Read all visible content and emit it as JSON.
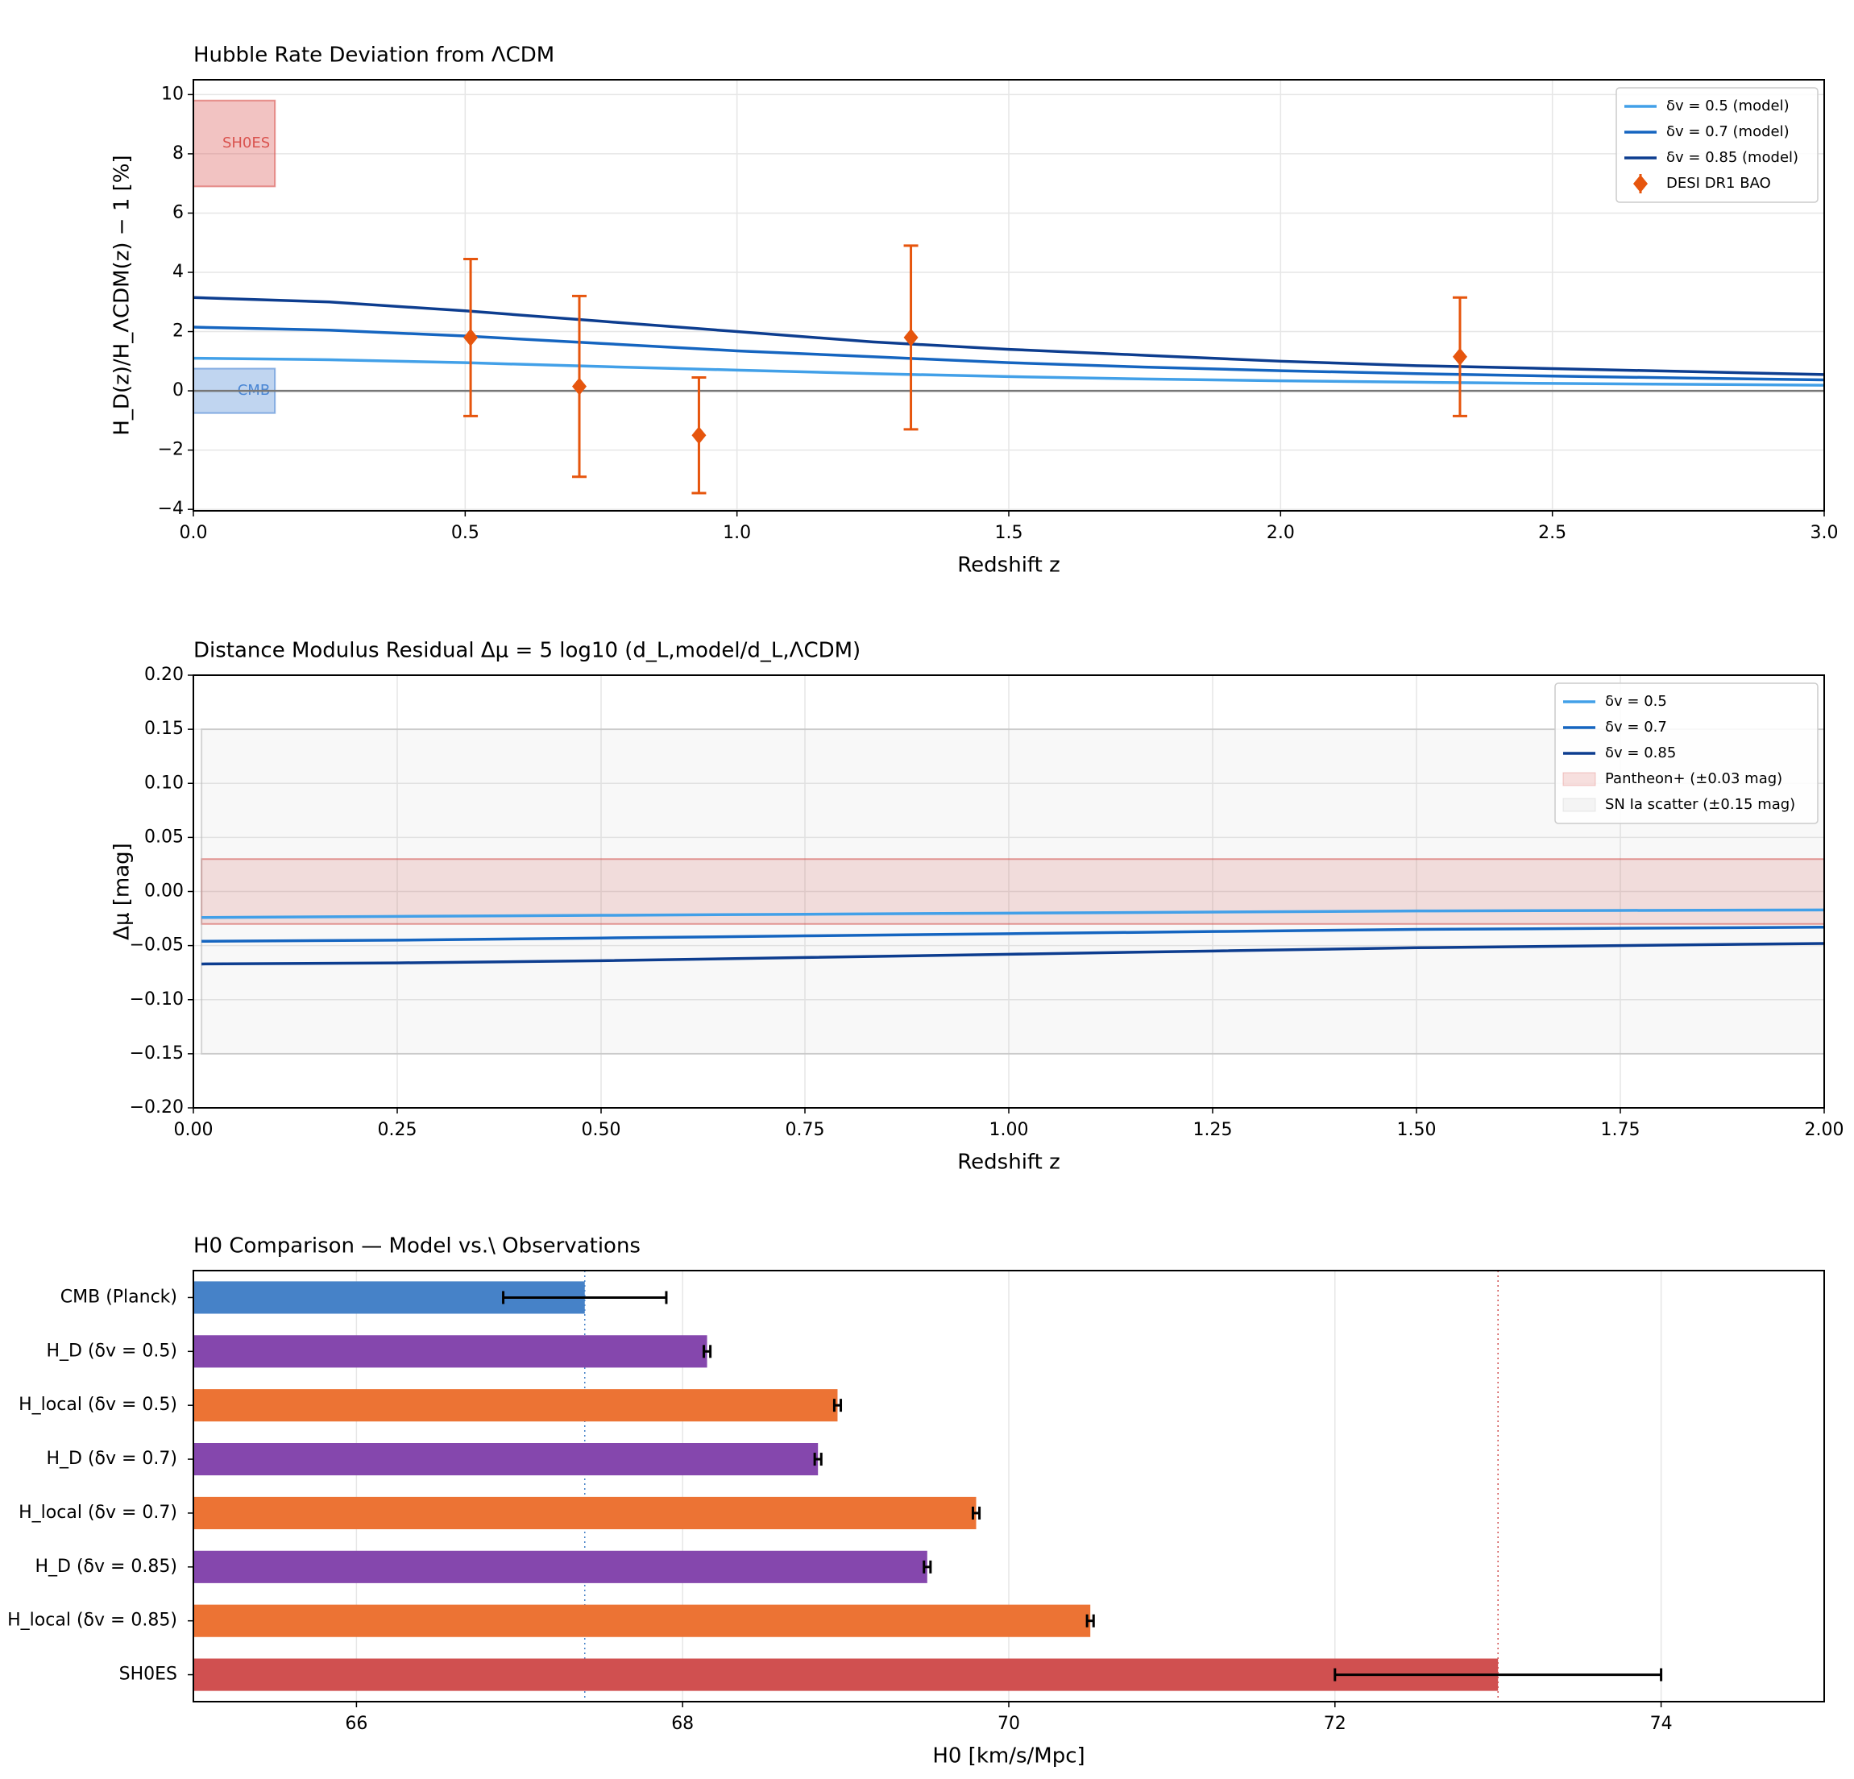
{
  "chart_data": [
    {
      "type": "line",
      "title": "Hubble Rate Deviation from ΛCDM",
      "xlabel": "Redshift z",
      "ylabel": "H_D(z)/H_ΛCDM(z) − 1 [%]",
      "x": [
        0,
        0.25,
        0.5,
        0.75,
        1.0,
        1.25,
        1.5,
        1.75,
        2.0,
        2.25,
        2.5,
        2.75,
        3.0
      ],
      "series": [
        {
          "name": "δv = 0.5 (model)",
          "color": "#42a0e8",
          "values": [
            1.1,
            1.05,
            0.95,
            0.82,
            0.7,
            0.58,
            0.48,
            0.4,
            0.34,
            0.29,
            0.25,
            0.22,
            0.19
          ]
        },
        {
          "name": "δv = 0.7 (model)",
          "color": "#1565c0",
          "values": [
            2.15,
            2.05,
            1.85,
            1.6,
            1.35,
            1.15,
            0.95,
            0.8,
            0.68,
            0.58,
            0.5,
            0.43,
            0.37
          ]
        },
        {
          "name": "δv = 0.85 (model)",
          "color": "#0d3d8f",
          "values": [
            3.15,
            3.0,
            2.7,
            2.35,
            2.0,
            1.65,
            1.4,
            1.2,
            1.0,
            0.85,
            0.75,
            0.65,
            0.55
          ]
        }
      ],
      "points": {
        "name": "DESI DR1 BAO",
        "color": "#e6550d",
        "x": [
          0.51,
          0.71,
          0.93,
          1.32,
          2.33
        ],
        "values": [
          1.8,
          0.15,
          -1.5,
          1.8,
          1.15
        ],
        "errors": [
          2.65,
          3.05,
          1.95,
          3.1,
          2.0
        ]
      },
      "bands": [
        {
          "label": "SH0ES",
          "color": "#d9534f",
          "xlim": [
            0,
            0.15
          ],
          "ylim": [
            6.9,
            9.8
          ]
        },
        {
          "label": "CMB",
          "color": "#4a86d4",
          "xlim": [
            0,
            0.15
          ],
          "ylim": [
            -0.75,
            0.75
          ]
        }
      ],
      "reference_line": 0,
      "xlim": [
        0,
        3
      ],
      "ylim": [
        -4.05,
        10.5
      ],
      "xticks": [
        {
          "value": 0,
          "label": "0.0"
        },
        0.5,
        {
          "value": 1,
          "label": "1.0"
        },
        1.5,
        {
          "value": 2,
          "label": "2.0"
        },
        2.5,
        {
          "value": 3,
          "label": "3.0"
        }
      ],
      "yticks": [
        {
          "value": -4,
          "label": "−4"
        },
        {
          "value": -2,
          "label": "−2"
        },
        0,
        2,
        4,
        6,
        8,
        10
      ],
      "grid": true,
      "legend": "upper right"
    },
    {
      "type": "line",
      "title": "Distance Modulus Residual Δμ = 5 log10 (d_L,model/d_L,ΛCDM)",
      "xlabel": "Redshift z",
      "ylabel": "Δμ [mag]",
      "x": [
        0.01,
        0.25,
        0.5,
        0.75,
        1.0,
        1.25,
        1.5,
        1.75,
        2.0
      ],
      "series": [
        {
          "name": "δv = 0.5",
          "color": "#42a0e8",
          "values": [
            -0.024,
            -0.023,
            -0.022,
            -0.021,
            -0.02,
            -0.019,
            -0.018,
            -0.0175,
            -0.017
          ]
        },
        {
          "name": "δv = 0.7",
          "color": "#1565c0",
          "values": [
            -0.046,
            -0.045,
            -0.043,
            -0.041,
            -0.039,
            -0.037,
            -0.035,
            -0.034,
            -0.033
          ]
        },
        {
          "name": "δv = 0.85",
          "color": "#0d3d8f",
          "values": [
            -0.067,
            -0.066,
            -0.064,
            -0.061,
            -0.058,
            -0.055,
            -0.052,
            -0.05,
            -0.048
          ]
        }
      ],
      "bands": [
        {
          "name": "Pantheon+ (±0.03 mag)",
          "color": "#d9534f",
          "opacity": 0.18,
          "xlim": [
            0.01,
            2
          ],
          "ylim": [
            -0.03,
            0.03
          ]
        },
        {
          "name": "SN Ia scatter (±0.15 mag)",
          "color": "#bbbbbb",
          "opacity": 0.1,
          "xlim": [
            0.01,
            2
          ],
          "ylim": [
            -0.15,
            0.15
          ]
        }
      ],
      "xlim": [
        0,
        2
      ],
      "ylim": [
        -0.2,
        0.2
      ],
      "xticks": [
        {
          "value": 0,
          "label": "0.00"
        },
        {
          "value": 0.25,
          "label": "0.25"
        },
        {
          "value": 0.5,
          "label": "0.50"
        },
        {
          "value": 0.75,
          "label": "0.75"
        },
        {
          "value": 1,
          "label": "1.00"
        },
        {
          "value": 1.25,
          "label": "1.25"
        },
        {
          "value": 1.5,
          "label": "1.50"
        },
        {
          "value": 1.75,
          "label": "1.75"
        },
        {
          "value": 2,
          "label": "2.00"
        }
      ],
      "yticks": [
        {
          "value": -0.2,
          "label": "−0.20"
        },
        {
          "value": -0.15,
          "label": "−0.15"
        },
        {
          "value": -0.1,
          "label": "−0.10"
        },
        {
          "value": -0.05,
          "label": "−0.05"
        },
        {
          "value": 0,
          "label": "0.00"
        },
        {
          "value": 0.05,
          "label": "0.05"
        },
        {
          "value": 0.1,
          "label": "0.10"
        },
        {
          "value": 0.15,
          "label": "0.15"
        },
        {
          "value": 0.2,
          "label": "0.20"
        }
      ],
      "grid": true,
      "legend": "upper right"
    },
    {
      "type": "barh",
      "title": "H0 Comparison — Model vs.\\ Observations",
      "xlabel": "H0 [km/s/Mpc]",
      "categories": [
        "CMB (Planck)",
        "H_D (δv = 0.5)",
        "H_local (δv = 0.5)",
        "H_D (δv = 0.7)",
        "H_local (δv = 0.7)",
        "H_D (δv = 0.85)",
        "H_local (δv = 0.85)",
        "SH0ES"
      ],
      "values": [
        67.4,
        68.15,
        68.95,
        68.83,
        69.8,
        69.5,
        70.5,
        73.0
      ],
      "errors": [
        0.5,
        0.02,
        0.02,
        0.02,
        0.02,
        0.02,
        0.02,
        1.0
      ],
      "colors": [
        "#4682c8",
        "#8547ad",
        "#ec7334",
        "#8547ad",
        "#ec7334",
        "#8547ad",
        "#ec7334",
        "#d05050"
      ],
      "reference_lines": [
        {
          "value": 67.4,
          "color": "#4682c8"
        },
        {
          "value": 73.0,
          "color": "#d05050"
        }
      ],
      "xlim": [
        65,
        75
      ],
      "xticks": [
        66,
        68,
        70,
        72,
        74
      ],
      "grid": true
    }
  ]
}
